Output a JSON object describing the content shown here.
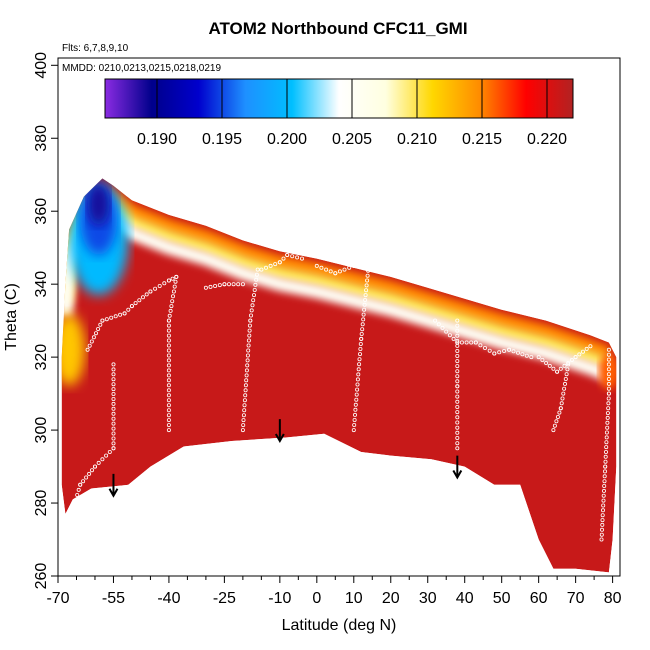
{
  "chart_data": {
    "type": "heatmap",
    "title": "ATOM2 Northbound CFC11_GMI",
    "annotations": [
      "Flts: 6,7,8,9,10",
      "MMDD: 0210,0213,0215,0218,0219"
    ],
    "xlabel": "Latitude (deg N)",
    "ylabel": "Theta (C)",
    "xlim": [
      -70,
      82
    ],
    "ylim": [
      260,
      402
    ],
    "x_ticks": [
      -70,
      -55,
      -40,
      -25,
      -10,
      0,
      10,
      20,
      30,
      40,
      50,
      60,
      70,
      80
    ],
    "x_minor_ticks": [
      -65,
      -60,
      -50,
      -45,
      -35,
      -30,
      -20,
      -15,
      -5,
      5,
      15,
      25,
      35,
      45,
      55,
      65,
      75
    ],
    "y_ticks": [
      260,
      280,
      300,
      320,
      340,
      360,
      380,
      400
    ],
    "colorbar": {
      "min": 0.186,
      "max": 0.222,
      "ticks": [
        0.19,
        0.195,
        0.2,
        0.205,
        0.21,
        0.215,
        0.22
      ],
      "tick_labels": [
        "0.190",
        "0.195",
        "0.200",
        "0.205",
        "0.210",
        "0.215",
        "0.220"
      ],
      "colors": [
        "#8a2be2",
        "#00008b",
        "#0000cd",
        "#1e90ff",
        "#00bfff",
        "#ffffff",
        "#ffffe0",
        "#ffd700",
        "#ff8c00",
        "#ff0000",
        "#b22222"
      ]
    },
    "data_outline": [
      [
        -68,
        277
      ],
      [
        -66,
        281
      ],
      [
        -61,
        284
      ],
      [
        -51,
        285
      ],
      [
        -45,
        290
      ],
      [
        -36,
        295.5
      ],
      [
        -23,
        297
      ],
      [
        -8,
        298
      ],
      [
        2,
        299
      ],
      [
        12,
        294
      ],
      [
        20,
        293
      ],
      [
        31,
        292
      ],
      [
        40,
        290
      ],
      [
        48,
        285
      ],
      [
        55,
        285
      ],
      [
        60,
        270
      ],
      [
        64,
        262
      ],
      [
        70,
        262
      ],
      [
        79,
        261
      ],
      [
        80,
        270
      ],
      [
        81,
        290
      ],
      [
        81,
        320
      ],
      [
        79,
        324
      ],
      [
        74,
        326
      ],
      [
        62,
        330
      ],
      [
        50,
        333
      ],
      [
        40,
        336
      ],
      [
        30,
        339
      ],
      [
        20,
        342
      ],
      [
        12,
        344
      ],
      [
        0,
        347
      ],
      [
        -10,
        349
      ],
      [
        -20,
        352
      ],
      [
        -30,
        356
      ],
      [
        -40,
        359
      ],
      [
        -50,
        363
      ],
      [
        -55,
        367
      ],
      [
        -58,
        369
      ],
      [
        -63,
        364
      ],
      [
        -67,
        355
      ],
      [
        -68,
        340
      ],
      [
        -69,
        320
      ],
      [
        -69,
        300
      ],
      [
        -69,
        285
      ]
    ],
    "field_bands": [
      {
        "value": 0.22,
        "region": "core",
        "ylim": [
          260,
          340
        ]
      },
      {
        "value": 0.215,
        "region": "upper-edge",
        "offset": 3
      },
      {
        "value": 0.21,
        "region": "upper-edge",
        "offset": 6
      },
      {
        "value": 0.205,
        "region": "upper-edge",
        "offset": 9
      },
      {
        "value": 0.2,
        "region": "south-plume",
        "center": [
          -59,
          352
        ],
        "radius": [
          8,
          15
        ]
      },
      {
        "value": 0.195,
        "region": "south-plume",
        "center": [
          -59,
          358
        ],
        "radius": [
          5,
          10
        ]
      },
      {
        "value": 0.189,
        "region": "south-plume",
        "center": [
          -59,
          362
        ],
        "radius": [
          3,
          6
        ]
      }
    ],
    "flight_tracks": [
      [
        [
          -62,
          322
        ],
        [
          -58,
          330
        ],
        [
          -52,
          332
        ],
        [
          -50,
          334
        ],
        [
          -45,
          338
        ],
        [
          -40,
          341
        ],
        [
          -38,
          342
        ]
      ],
      [
        [
          -30,
          339
        ],
        [
          -25,
          340
        ],
        [
          -20,
          340
        ]
      ],
      [
        [
          -15,
          344
        ],
        [
          -10,
          346
        ],
        [
          -8,
          348
        ],
        [
          -4,
          347
        ]
      ],
      [
        [
          0,
          345
        ],
        [
          5,
          343
        ],
        [
          10,
          345
        ],
        [
          16,
          345
        ],
        [
          20,
          344
        ]
      ],
      [
        [
          32,
          330
        ],
        [
          38,
          324
        ],
        [
          43,
          324
        ],
        [
          48,
          321
        ],
        [
          52,
          322
        ],
        [
          58,
          320
        ]
      ],
      [
        [
          60,
          320
        ],
        [
          65,
          316
        ],
        [
          70,
          320
        ],
        [
          74,
          323
        ]
      ],
      [
        [
          -66,
          278
        ],
        [
          -64,
          285
        ],
        [
          -60,
          290
        ],
        [
          -55,
          295
        ],
        [
          -55,
          318
        ]
      ],
      [
        [
          -40,
          300
        ],
        [
          -40,
          330
        ],
        [
          -38,
          342
        ]
      ],
      [
        [
          -20,
          300
        ],
        [
          -18,
          330
        ],
        [
          -16,
          344
        ]
      ],
      [
        [
          10,
          300
        ],
        [
          12,
          325
        ],
        [
          14,
          345
        ]
      ],
      [
        [
          38,
          295
        ],
        [
          38,
          312
        ],
        [
          38,
          330
        ]
      ],
      [
        [
          64,
          300
        ],
        [
          66,
          306
        ],
        [
          68,
          318
        ]
      ],
      [
        [
          77,
          270
        ],
        [
          78,
          290
        ],
        [
          79,
          310
        ],
        [
          79,
          322
        ]
      ]
    ],
    "arrows": [
      {
        "lat": -55,
        "theta_from": 288,
        "theta_to": 282
      },
      {
        "lat": -10,
        "theta_from": 303,
        "theta_to": 297
      },
      {
        "lat": 38,
        "theta_from": 293,
        "theta_to": 287
      }
    ]
  }
}
